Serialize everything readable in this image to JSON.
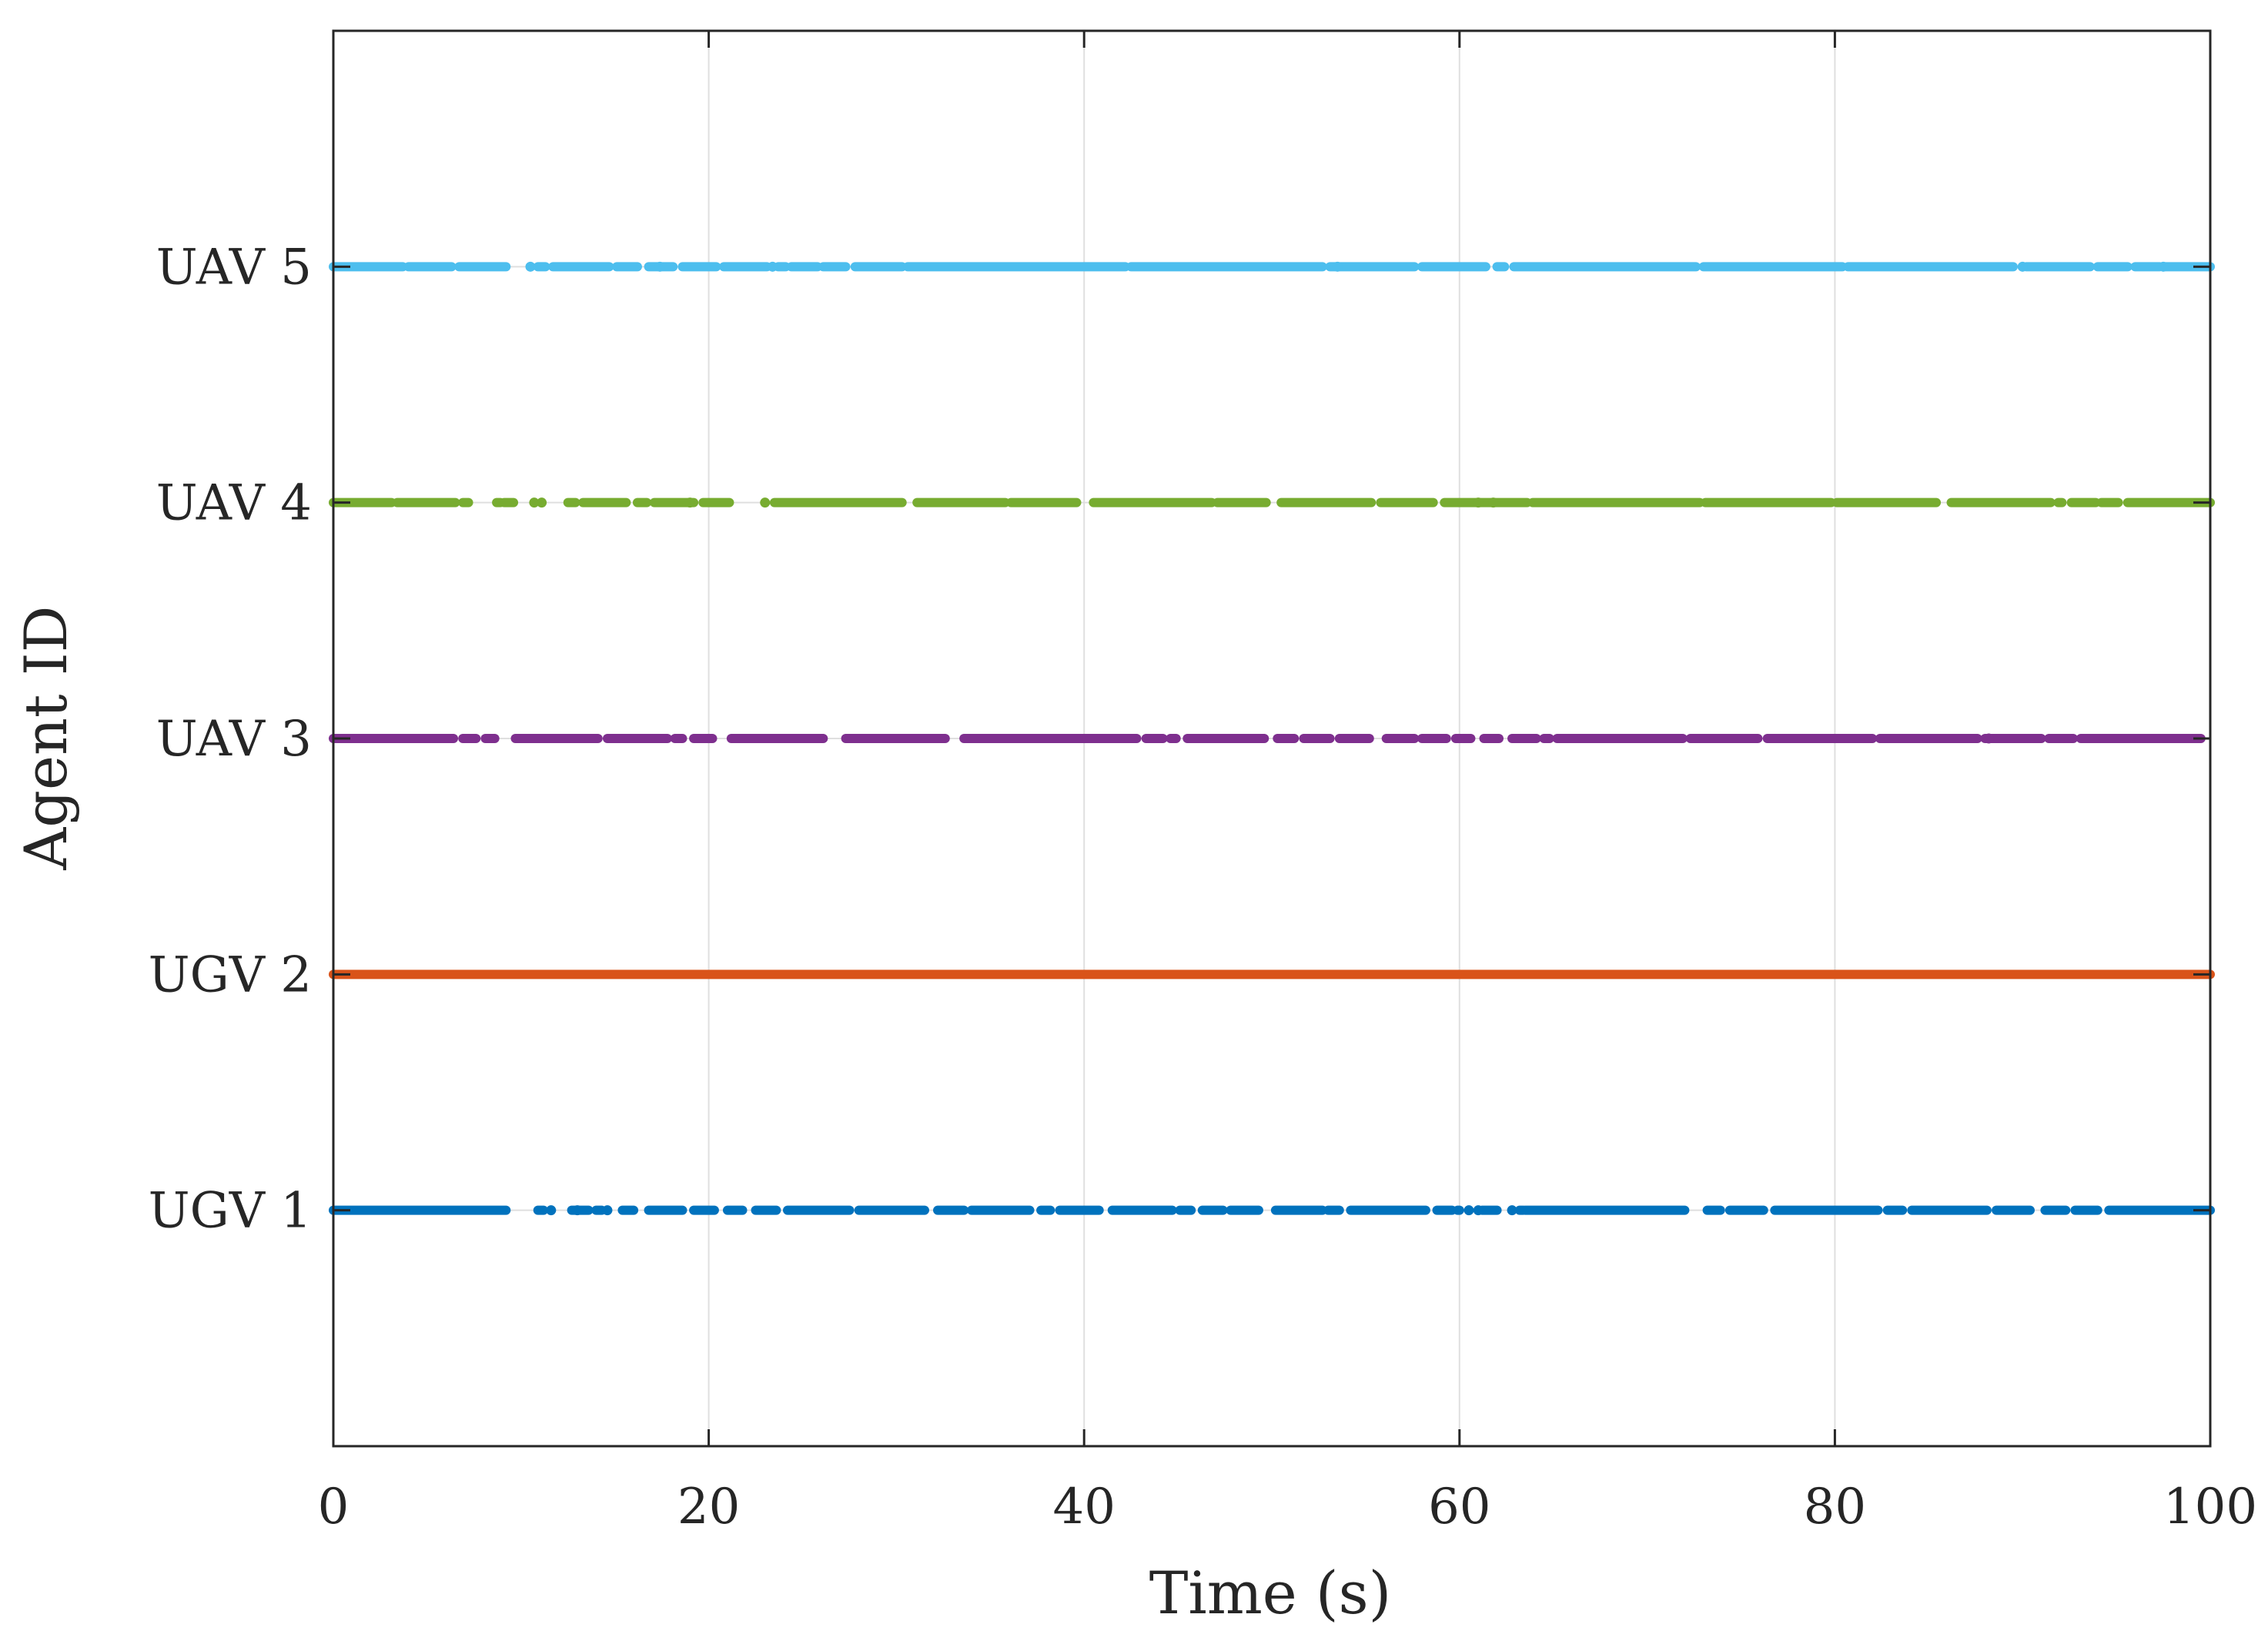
{
  "chart_data": {
    "type": "scatter",
    "title": "",
    "xlabel": "Time (s)",
    "ylabel": "Agent ID",
    "xlim": [
      0,
      100
    ],
    "ylim": [
      0,
      6
    ],
    "xticks": [
      0,
      20,
      40,
      60,
      80,
      100
    ],
    "yticks": [
      1,
      2,
      3,
      4,
      5
    ],
    "ytick_labels": [
      "UGV 1",
      "UGV 2",
      "UAV 3",
      "UAV 4",
      "UAV 5"
    ],
    "grid": true,
    "series": [
      {
        "y": 1,
        "color": "#0072bd",
        "segments": [
          [
            0,
            9.2
          ],
          [
            10.9,
            11.2
          ],
          [
            12.7,
            13.6
          ],
          [
            14.0,
            14.3
          ],
          [
            15.4,
            16.0
          ],
          [
            16.8,
            18.6
          ],
          [
            19.2,
            20.3
          ],
          [
            21.0,
            21.8
          ],
          [
            22.5,
            23.6
          ],
          [
            24.2,
            27.5
          ],
          [
            28.0,
            31.5
          ],
          [
            32.2,
            33.6
          ],
          [
            34.0,
            37.1
          ],
          [
            37.7,
            38.2
          ],
          [
            38.7,
            40.8
          ],
          [
            41.5,
            44.7
          ],
          [
            45.1,
            45.7
          ],
          [
            46.3,
            47.4
          ],
          [
            47.8,
            49.3
          ],
          [
            50.2,
            52.7
          ],
          [
            53.0,
            53.6
          ],
          [
            54.2,
            58.2
          ],
          [
            58.8,
            59.6
          ],
          [
            59.9,
            60.0
          ],
          [
            61.2,
            62.0
          ],
          [
            63.2,
            63.4
          ],
          [
            63.5,
            72.0
          ],
          [
            73.2,
            73.9
          ],
          [
            74.4,
            76.2
          ],
          [
            76.8,
            82.3
          ],
          [
            82.8,
            83.6
          ],
          [
            84.1,
            88.1
          ],
          [
            88.6,
            90.4
          ],
          [
            91.2,
            92.3
          ],
          [
            92.8,
            94.0
          ],
          [
            94.6,
            100
          ]
        ],
        "points": [
          11.6,
          13.0,
          14.6,
          60.5,
          61.0,
          62.8
        ]
      },
      {
        "y": 2,
        "color": "#d95319",
        "segments": [
          [
            0,
            100
          ]
        ],
        "points": []
      },
      {
        "y": 3,
        "color": "#7e2f8e",
        "segments": [
          [
            0,
            6.4
          ],
          [
            6.9,
            7.6
          ],
          [
            8.1,
            8.6
          ],
          [
            9.7,
            14.1
          ],
          [
            14.6,
            17.8
          ],
          [
            18.2,
            18.6
          ],
          [
            19.2,
            20.2
          ],
          [
            21.2,
            26.1
          ],
          [
            27.3,
            32.6
          ],
          [
            33.6,
            42.8
          ],
          [
            43.3,
            44.2
          ],
          [
            44.6,
            44.9
          ],
          [
            45.5,
            49.6
          ],
          [
            50.3,
            51.2
          ],
          [
            51.7,
            53.1
          ],
          [
            53.6,
            55.2
          ],
          [
            56.1,
            57.6
          ],
          [
            58.0,
            59.3
          ],
          [
            59.8,
            60.6
          ],
          [
            61.3,
            62.1
          ],
          [
            62.8,
            64.1
          ],
          [
            64.5,
            64.8
          ],
          [
            65.2,
            71.9
          ],
          [
            72.3,
            75.9
          ],
          [
            76.4,
            82.0
          ],
          [
            82.4,
            87.6
          ],
          [
            88.0,
            91.0
          ],
          [
            91.4,
            92.7
          ],
          [
            93.1,
            99.5
          ]
        ],
        "points": [
          88.2
        ]
      },
      {
        "y": 4,
        "color": "#77ac30",
        "segments": [
          [
            0,
            3.1
          ],
          [
            3.4,
            6.5
          ],
          [
            6.9,
            7.2
          ],
          [
            8.7,
            8.9
          ],
          [
            9.1,
            9.6
          ],
          [
            12.5,
            12.9
          ],
          [
            13.3,
            15.6
          ],
          [
            16.2,
            16.7
          ],
          [
            17.1,
            19.2
          ],
          [
            19.7,
            21.1
          ],
          [
            23.5,
            30.3
          ],
          [
            31.1,
            35.8
          ],
          [
            36.1,
            39.6
          ],
          [
            40.5,
            46.8
          ],
          [
            47.1,
            49.7
          ],
          [
            50.5,
            55.3
          ],
          [
            55.8,
            58.6
          ],
          [
            59.2,
            63.6
          ],
          [
            63.9,
            72.8
          ],
          [
            73.1,
            79.8
          ],
          [
            80.1,
            85.4
          ],
          [
            86.2,
            91.5
          ],
          [
            91.9,
            92.1
          ],
          [
            92.6,
            93.9
          ],
          [
            94.2,
            95.1
          ],
          [
            95.6,
            100
          ]
        ],
        "points": [
          10.7,
          11.1,
          19.0,
          23.0,
          61.0,
          61.8
        ]
      },
      {
        "y": 5,
        "color": "#4dbeee",
        "segments": [
          [
            0,
            3.7
          ],
          [
            4.0,
            6.3
          ],
          [
            6.7,
            9.2
          ],
          [
            10.9,
            11.3
          ],
          [
            11.7,
            14.7
          ],
          [
            15.1,
            16.2
          ],
          [
            16.8,
            18.1
          ],
          [
            18.6,
            20.4
          ],
          [
            20.8,
            23.1
          ],
          [
            23.7,
            24.1
          ],
          [
            24.4,
            25.8
          ],
          [
            26.1,
            27.3
          ],
          [
            27.8,
            30.3
          ],
          [
            30.6,
            42.2
          ],
          [
            42.5,
            52.7
          ],
          [
            53.1,
            57.6
          ],
          [
            58.0,
            61.4
          ],
          [
            62.0,
            62.4
          ],
          [
            62.9,
            72.6
          ],
          [
            73.0,
            80.4
          ],
          [
            80.7,
            89.5
          ],
          [
            90.2,
            93.6
          ],
          [
            94.0,
            95.6
          ],
          [
            96.0,
            97.3
          ],
          [
            97.6,
            100
          ]
        ],
        "points": [
          10.5,
          17.4,
          23.4,
          53.5,
          90.0,
          97.5
        ]
      }
    ]
  }
}
